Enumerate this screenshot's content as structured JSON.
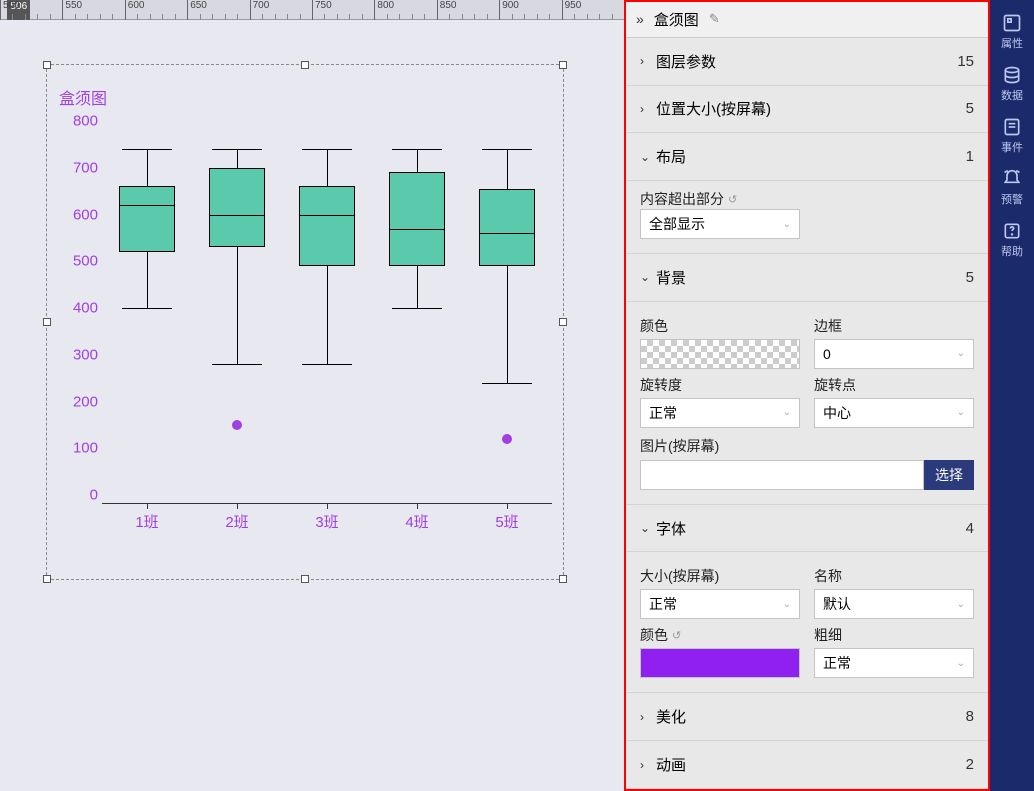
{
  "ruler": {
    "cursor_pos": 506,
    "cursor_label": "506",
    "major_ticks": [
      500,
      550,
      600,
      650,
      700,
      750,
      800,
      850,
      900,
      950
    ]
  },
  "chart": {
    "type": "boxplot",
    "title": "盒须图",
    "title_color": "#a040e0",
    "label_color": "#a040e0",
    "box_fill": "#5ac9ac",
    "box_border": "#000000",
    "outlier_color": "#a040e0",
    "background": "#e8e8f0",
    "ylim": [
      0,
      800
    ],
    "ytick_step": 100,
    "y_ticks": [
      0,
      100,
      200,
      300,
      400,
      500,
      600,
      700,
      800
    ],
    "categories": [
      "1班",
      "2班",
      "3班",
      "4班",
      "5班"
    ],
    "series": [
      {
        "min": 400,
        "q1": 520,
        "median": 620,
        "q3": 660,
        "max": 740,
        "outliers": []
      },
      {
        "min": 280,
        "q1": 530,
        "median": 600,
        "q3": 700,
        "max": 740,
        "outliers": [
          150
        ]
      },
      {
        "min": 280,
        "q1": 490,
        "median": 600,
        "q3": 660,
        "max": 740,
        "outliers": []
      },
      {
        "min": 400,
        "q1": 490,
        "median": 570,
        "q3": 690,
        "max": 740,
        "outliers": []
      },
      {
        "min": 240,
        "q1": 490,
        "median": 560,
        "q3": 655,
        "max": 740,
        "outliers": [
          120
        ]
      }
    ]
  },
  "panel": {
    "header_title": "盒须图",
    "sections": {
      "layer_params": {
        "label": "图层参数",
        "count": "15"
      },
      "position_size": {
        "label": "位置大小(按屏幕)",
        "count": "5"
      },
      "layout": {
        "label": "布局",
        "count": "1",
        "overflow_label": "内容超出部分",
        "overflow_value": "全部显示"
      },
      "background": {
        "label": "背景",
        "count": "5",
        "color_label": "颜色",
        "border_label": "边框",
        "border_value": "0",
        "rotation_label": "旋转度",
        "rotation_value": "正常",
        "rotation_point_label": "旋转点",
        "rotation_point_value": "中心",
        "image_label": "图片(按屏幕)",
        "select_btn": "选择"
      },
      "font": {
        "label": "字体",
        "count": "4",
        "size_label": "大小(按屏幕)",
        "size_value": "正常",
        "name_label": "名称",
        "name_value": "默认",
        "color_label": "颜色",
        "font_color": "#9020f0",
        "weight_label": "粗细",
        "weight_value": "正常"
      },
      "beautify": {
        "label": "美化",
        "count": "8"
      },
      "animation": {
        "label": "动画",
        "count": "2"
      }
    }
  },
  "rail": {
    "items": [
      {
        "key": "properties",
        "label": "属性"
      },
      {
        "key": "data",
        "label": "数据"
      },
      {
        "key": "events",
        "label": "事件"
      },
      {
        "key": "alerts",
        "label": "预警"
      },
      {
        "key": "help",
        "label": "帮助"
      }
    ]
  }
}
